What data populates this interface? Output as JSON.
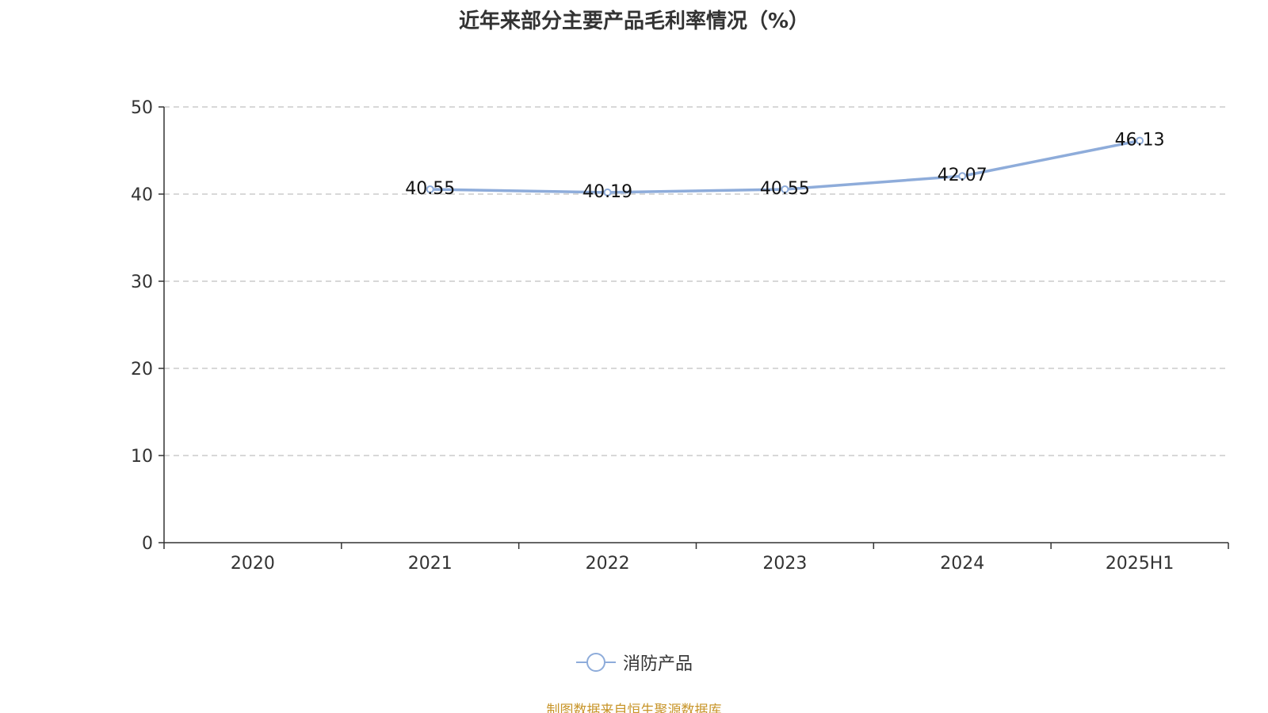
{
  "title": "近年来部分主要产品毛利率情况（%）",
  "source_note": "制图数据来自恒生聚源数据库",
  "colors": {
    "series": "#8eacda",
    "axis": "#333333",
    "grid": "#cccccc",
    "text": "#333333",
    "source": "#c8952a"
  },
  "chart_data": {
    "type": "line",
    "title": "近年来部分主要产品毛利率情况（%）",
    "categories": [
      "2020",
      "2021",
      "2022",
      "2023",
      "2024",
      "2025H1"
    ],
    "series": [
      {
        "name": "消防产品",
        "values": [
          null,
          40.55,
          40.19,
          40.55,
          42.07,
          46.13
        ],
        "labels": [
          "",
          "40.55",
          "40.19",
          "40.55",
          "42.07",
          "46.13"
        ]
      }
    ],
    "ylim": [
      0,
      50
    ],
    "yticks": [
      "0",
      "10",
      "20",
      "30",
      "40",
      "50"
    ],
    "grid": true,
    "legend": "bottom-center",
    "xlabel": "",
    "ylabel": ""
  }
}
